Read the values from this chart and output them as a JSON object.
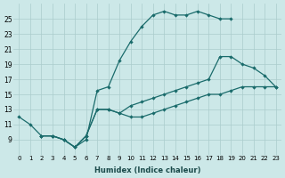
{
  "xlabel": "Humidex (Indice chaleur)",
  "bg_color": "#cce8e8",
  "grid_color": "#aacccc",
  "line_color": "#1a6b6b",
  "xlim": [
    -0.5,
    23.5
  ],
  "ylim": [
    7,
    27
  ],
  "xticks": [
    0,
    1,
    2,
    3,
    4,
    5,
    6,
    7,
    8,
    9,
    10,
    11,
    12,
    13,
    14,
    15,
    16,
    17,
    18,
    19,
    20,
    21,
    22,
    23
  ],
  "yticks": [
    9,
    11,
    13,
    15,
    17,
    19,
    21,
    23,
    25
  ],
  "line1_x": [
    0,
    1,
    2,
    3,
    4,
    5,
    6,
    7,
    8,
    9,
    10,
    11,
    12,
    13,
    14,
    15,
    16,
    17,
    18,
    19
  ],
  "line1_y": [
    12,
    11,
    9.5,
    9.5,
    9,
    8,
    9,
    15.5,
    16,
    19.5,
    22,
    24,
    25.5,
    26,
    25.5,
    25.5,
    26,
    25.5,
    25,
    25
  ],
  "line2_x": [
    2,
    3,
    4,
    5,
    6,
    7,
    8,
    9,
    10,
    11,
    12,
    13,
    14,
    15,
    16,
    17,
    18,
    19,
    20,
    21,
    22,
    23
  ],
  "line2_y": [
    9.5,
    9.5,
    9,
    8,
    9.5,
    13,
    13,
    12.5,
    13.5,
    14,
    14.5,
    15,
    15.5,
    16,
    16.5,
    17,
    20,
    20,
    19,
    18.5,
    17.5,
    16
  ],
  "line3_x": [
    2,
    3,
    4,
    5,
    6,
    7,
    8,
    9,
    10,
    11,
    12,
    13,
    14,
    15,
    16,
    17,
    18,
    19,
    20,
    21,
    22,
    23
  ],
  "line3_y": [
    9.5,
    9.5,
    9,
    8,
    9.5,
    13,
    13,
    12.5,
    12,
    12,
    12.5,
    13,
    13.5,
    14,
    14.5,
    15,
    15,
    15.5,
    16,
    16,
    16,
    16
  ]
}
